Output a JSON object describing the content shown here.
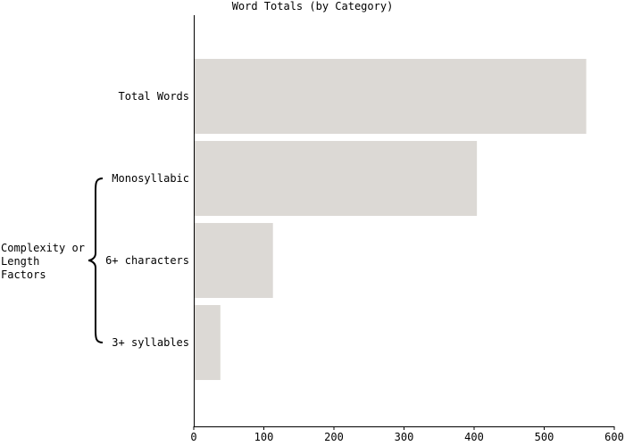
{
  "chart_data": {
    "type": "bar",
    "orientation": "horizontal",
    "title": "Word Totals (by Category)",
    "xlabel": "",
    "ylabel": "",
    "categories": [
      "Total Words",
      "Monosyllabic",
      "6+ characters",
      "3+ syllables"
    ],
    "values": [
      560,
      404,
      113,
      38
    ],
    "xlim": [
      0,
      600
    ],
    "xticks": [
      0,
      100,
      200,
      300,
      400,
      500,
      600
    ],
    "grid": false,
    "bar_color": "#dcd9d5",
    "group_bracket": {
      "label": [
        "Complexity or",
        "Length",
        "Factors"
      ],
      "categories": [
        "Monosyllabic",
        "6+ characters",
        "3+ syllables"
      ]
    }
  }
}
